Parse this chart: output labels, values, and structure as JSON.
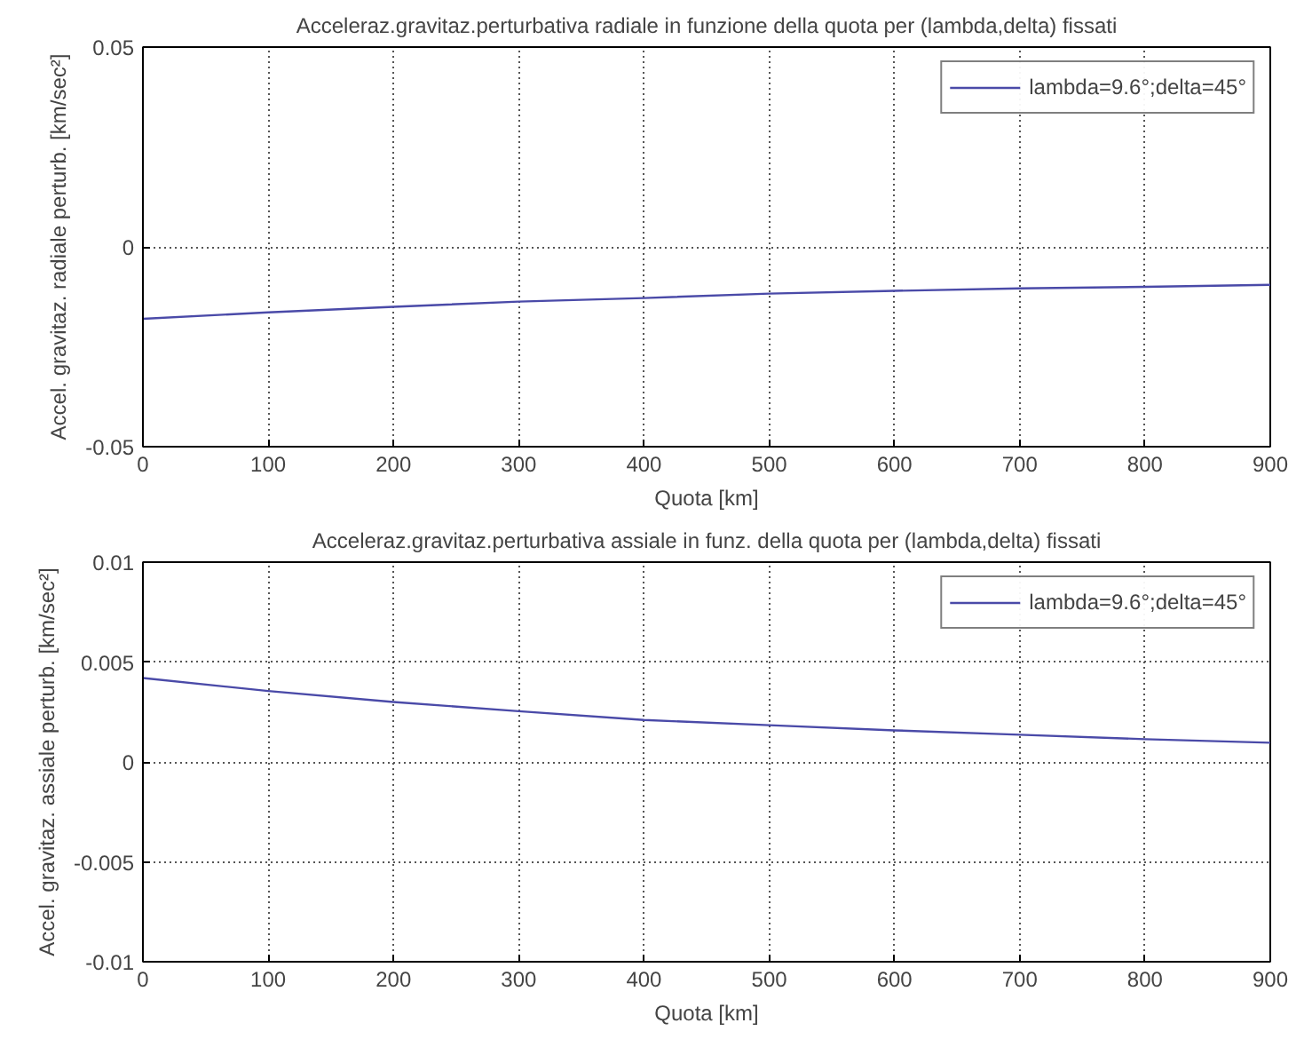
{
  "chart_data": [
    {
      "type": "line",
      "title": "Acceleraz.gravitaz.perturbativa radiale in funzione della quota per (lambda,delta) fissati",
      "xlabel": "Quota [km]",
      "ylabel": "Accel. gravitaz. radiale perturb. [km/sec²]",
      "x": [
        0,
        100,
        200,
        300,
        400,
        500,
        600,
        700,
        800,
        900
      ],
      "xlim": [
        0,
        900
      ],
      "xticks": [
        0,
        100,
        200,
        300,
        400,
        500,
        600,
        700,
        800,
        900
      ],
      "ylim": [
        -0.05,
        0.05
      ],
      "yticks": [
        -0.05,
        0,
        0.05
      ],
      "grid": true,
      "legend": "top right",
      "series": [
        {
          "name": "lambda=9.6°;delta=45°",
          "color": "#4a4aa8",
          "values": [
            -0.018,
            -0.0164,
            -0.015,
            -0.0137,
            -0.0128,
            -0.0117,
            -0.011,
            -0.0104,
            -0.01,
            -0.0095
          ]
        }
      ]
    },
    {
      "type": "line",
      "title": "Acceleraz.gravitaz.perturbativa assiale in funz. della quota per (lambda,delta) fissati",
      "xlabel": "Quota [km]",
      "ylabel": "Accel. gravitaz. assiale perturb. [km/sec²]",
      "x": [
        0,
        100,
        200,
        300,
        400,
        500,
        600,
        700,
        800,
        900
      ],
      "xlim": [
        0,
        900
      ],
      "xticks": [
        0,
        100,
        200,
        300,
        400,
        500,
        600,
        700,
        800,
        900
      ],
      "ylim": [
        -0.01,
        0.01
      ],
      "yticks": [
        -0.01,
        -0.005,
        0,
        0.005,
        0.01
      ],
      "grid": true,
      "legend": "top right",
      "series": [
        {
          "name": "lambda=9.6°;delta=45°",
          "color": "#4a4aa8",
          "values": [
            0.0042,
            0.00355,
            0.003,
            0.00254,
            0.0021,
            0.00184,
            0.00158,
            0.00136,
            0.00114,
            0.00096
          ]
        }
      ]
    }
  ]
}
